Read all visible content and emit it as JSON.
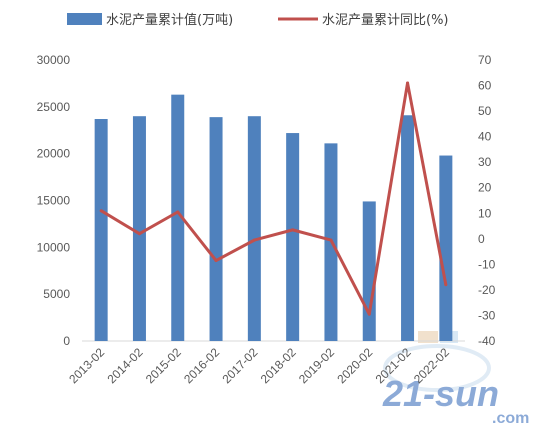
{
  "chart_data": {
    "type": "bar",
    "categories": [
      "2013-02",
      "2014-02",
      "2015-02",
      "2016-02",
      "2017-02",
      "2018-02",
      "2019-02",
      "2020-02",
      "2021-02",
      "2022-02"
    ],
    "series": [
      {
        "name": "水泥产量累计值(万吨)",
        "type": "bar",
        "axis": "left",
        "color": "#4f81bd",
        "values": [
          23700,
          24000,
          26300,
          23900,
          24000,
          22200,
          21100,
          14900,
          24100,
          19800
        ]
      },
      {
        "name": "水泥产量累计同比(%)",
        "type": "line",
        "axis": "right",
        "color": "#c0504d",
        "values": [
          11,
          2,
          10.5,
          -8.5,
          -0.5,
          3.5,
          -0.5,
          -29.5,
          61,
          -18
        ]
      }
    ],
    "y_left": {
      "range": [
        0,
        30000
      ],
      "ticks": [
        "0",
        "5000",
        "10000",
        "15000",
        "20000",
        "25000",
        "30000"
      ]
    },
    "y_right": {
      "range": [
        -40,
        70
      ],
      "ticks": [
        "-40",
        "-30",
        "-20",
        "-10",
        "0",
        "10",
        "20",
        "30",
        "40",
        "50",
        "60",
        "70"
      ]
    },
    "grid": false,
    "legend_position": "top"
  },
  "watermark": {
    "text": "21-sun",
    "suffix": ".com"
  }
}
